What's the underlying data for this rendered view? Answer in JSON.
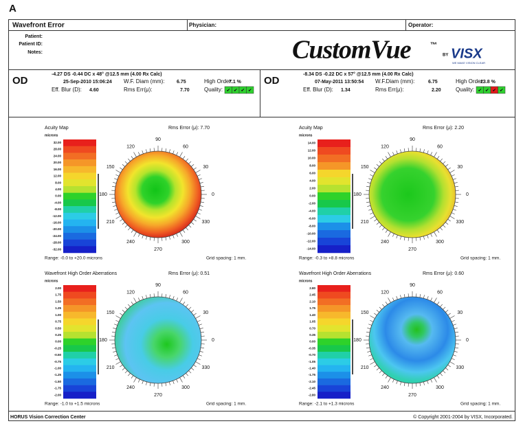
{
  "figure_label": "A",
  "header": {
    "title": "Wavefront Error",
    "physician": "Physician:",
    "operator": "Operator:"
  },
  "patient": {
    "labels": [
      "Patient:",
      "Patient ID:",
      "Notes:"
    ]
  },
  "logo": {
    "name": "CustomVue",
    "tm": "™",
    "by": "BY",
    "brand": "VISX",
    "tagline": "WE MAKE VISION CLEAR"
  },
  "exams": [
    {
      "eye": "OD",
      "refraction": "-4.27 DS -0.44 DC x 48° @12.5 mm (4.00 Rx Calc)",
      "date": "25-Sep-2010 15:06:24",
      "wf_diam_label": "W.F. Diam (mm):",
      "wf_diam": "6.75",
      "high_order_label": "High Order:",
      "high_order": "7.1 %",
      "blur_label": "Eff. Blur (D):",
      "blur": "4.60",
      "rms_label": "Rms Err(μ):",
      "rms": "7.70",
      "quality_label": "Quality:",
      "quality": [
        {
          "mark": "✔",
          "color": "#2fd12f"
        },
        {
          "mark": "✔",
          "color": "#2fd12f"
        },
        {
          "mark": "✔",
          "color": "#2fd12f"
        },
        {
          "mark": "✔",
          "color": "#2fd12f"
        }
      ]
    },
    {
      "eye": "OD",
      "refraction": "-8.34 DS -0.22 DC x 57° @12.5 mm (4.00 Rx Calc)",
      "date": "07-May-2011 13:50:54",
      "wf_diam_label": "W.F.Diam (mm):",
      "wf_diam": "6.75",
      "high_order_label": "High Order:",
      "high_order": "23.8 %",
      "blur_label": "Eff. Blur (D):",
      "blur": "1.34",
      "rms_label": "Rms Err(μ):",
      "rms": "2.20",
      "quality_label": "Quality:",
      "quality": [
        {
          "mark": "✔",
          "color": "#2fd12f"
        },
        {
          "mark": "✔",
          "color": "#2fd12f"
        },
        {
          "mark": "✔",
          "color": "#e21a1a"
        },
        {
          "mark": "✔",
          "color": "#2fd12f"
        }
      ]
    }
  ],
  "maps": [
    {
      "title": "Acuity Map",
      "rms": "Rms Error (μ): 7.70",
      "unit": "microns",
      "scale": [
        "32.00",
        "28.00",
        "24.00",
        "20.00",
        "16.00",
        "12.00",
        "8.00",
        "4.00",
        "0.00",
        "-4.00",
        "-8.00",
        "-12.00",
        "-16.00",
        "-20.00",
        "-24.00",
        "-28.00",
        "-32.00"
      ],
      "angles": [
        "0",
        "30",
        "60",
        "90",
        "120",
        "150",
        "180",
        "210",
        "240",
        "270",
        "300",
        "330"
      ],
      "range": "Range: -0.0 to +20.0 microns",
      "grid": "Grid spacing: 1 mm."
    },
    {
      "title": "Acuity Map",
      "rms": "Rms Error (μ): 2.20",
      "unit": "microns",
      "scale": [
        "14.00",
        "12.00",
        "10.00",
        "8.00",
        "6.00",
        "4.00",
        "2.00",
        "0.00",
        "-2.00",
        "-4.00",
        "-6.00",
        "-8.00",
        "-10.00",
        "-12.00",
        "-14.00"
      ],
      "angles": [
        "0",
        "30",
        "60",
        "90",
        "120",
        "150",
        "180",
        "210",
        "240",
        "270",
        "300",
        "330"
      ],
      "range": "Range: -0.3 to +8.8 microns",
      "grid": "Grid spacing: 1 mm."
    },
    {
      "title": "Wavefront High Order Aberrations",
      "rms": "Rms Error (μ): 0.51",
      "unit": "microns",
      "scale": [
        "2.00",
        "1.75",
        "1.50",
        "1.25",
        "1.00",
        "0.75",
        "0.50",
        "0.25",
        "0.00",
        "-0.25",
        "-0.50",
        "-0.75",
        "-1.00",
        "-1.25",
        "-1.50",
        "-1.75",
        "-2.00"
      ],
      "angles": [
        "0",
        "30",
        "60",
        "90",
        "120",
        "150",
        "180",
        "210",
        "240",
        "270",
        "300",
        "330"
      ],
      "range": "Range: -1.0 to +1.5 microns",
      "grid": "Grid spacing: 1 mm."
    },
    {
      "title": "Wavefront High Order Aberrations",
      "rms": "Rms Error (μ): 0.60",
      "unit": "microns",
      "scale": [
        "2.80",
        "2.45",
        "2.10",
        "1.75",
        "1.40",
        "1.05",
        "0.70",
        "0.35",
        "0.00",
        "-0.35",
        "-0.70",
        "-1.05",
        "-1.40",
        "-1.75",
        "-2.10",
        "-2.45",
        "-2.80"
      ],
      "angles": [
        "0",
        "30",
        "60",
        "90",
        "120",
        "150",
        "180",
        "210",
        "240",
        "270",
        "300",
        "330"
      ],
      "range": "Range: -2.1 to +1.3 microns",
      "grid": "Grid spacing: 1 mm."
    }
  ],
  "footer": {
    "left": "HORUS Vision Correction Center",
    "right": "© Copyright 2001-2004 by VISX, Incorporated."
  }
}
